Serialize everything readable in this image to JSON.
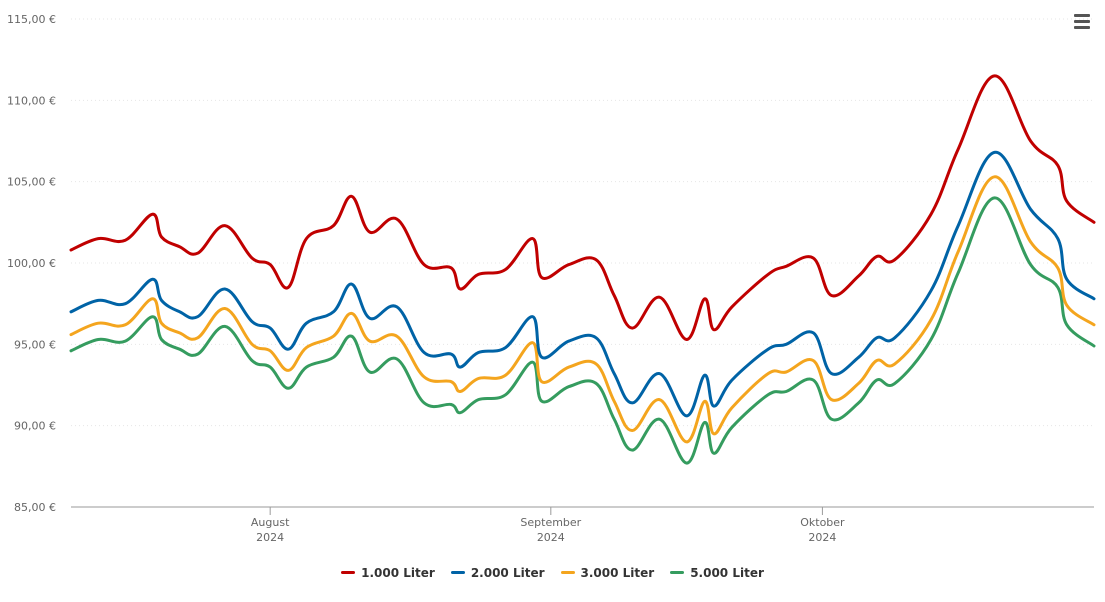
{
  "menu": {
    "icon": "hamburger-menu-icon"
  },
  "chart_data": {
    "type": "line",
    "title": "",
    "xlabel": "",
    "ylabel": "",
    "ylim": [
      85,
      115
    ],
    "yticks": [
      "85,00 €",
      "90,00 €",
      "95,00 €",
      "100,00 €",
      "105,00 €",
      "110,00 €",
      "115,00 €"
    ],
    "ytick_values": [
      85,
      90,
      95,
      100,
      105,
      110,
      115
    ],
    "xlim": [
      "2024-07-10",
      "2024-10-31"
    ],
    "xticks": [
      {
        "date": "2024-08-01",
        "month": "August",
        "year": "2024"
      },
      {
        "date": "2024-09-01",
        "month": "September",
        "year": "2024"
      },
      {
        "date": "2024-10-01",
        "month": "Oktober",
        "year": "2024"
      }
    ],
    "legend_position": "bottom",
    "grid": true,
    "x": [
      "2024-07-10",
      "2024-07-13",
      "2024-07-16",
      "2024-07-19",
      "2024-07-20",
      "2024-07-22",
      "2024-07-24",
      "2024-07-27",
      "2024-07-30",
      "2024-08-01",
      "2024-08-03",
      "2024-08-05",
      "2024-08-08",
      "2024-08-10",
      "2024-08-12",
      "2024-08-15",
      "2024-08-18",
      "2024-08-21",
      "2024-08-22",
      "2024-08-24",
      "2024-08-27",
      "2024-08-30",
      "2024-08-31",
      "2024-09-03",
      "2024-09-06",
      "2024-09-08",
      "2024-09-10",
      "2024-09-13",
      "2024-09-16",
      "2024-09-18",
      "2024-09-19",
      "2024-09-21",
      "2024-09-25",
      "2024-09-27",
      "2024-09-30",
      "2024-10-02",
      "2024-10-05",
      "2024-10-07",
      "2024-10-09",
      "2024-10-13",
      "2024-10-16",
      "2024-10-20",
      "2024-10-24",
      "2024-10-27",
      "2024-10-28",
      "2024-10-31"
    ],
    "series": [
      {
        "name": "1.000 Liter",
        "color": "#c00000",
        "values": [
          100.8,
          101.5,
          101.4,
          103.0,
          101.6,
          101.0,
          100.6,
          102.3,
          100.3,
          99.9,
          98.5,
          101.5,
          102.3,
          104.1,
          101.9,
          102.7,
          99.9,
          99.7,
          98.4,
          99.3,
          99.6,
          101.5,
          99.1,
          99.9,
          100.2,
          98.0,
          96.0,
          97.9,
          95.3,
          97.8,
          95.9,
          97.3,
          99.3,
          99.8,
          100.3,
          98.0,
          99.2,
          100.4,
          100.2,
          103.0,
          107.0,
          111.5,
          107.5,
          106.0,
          103.8,
          102.5
        ]
      },
      {
        "name": "2.000 Liter",
        "color": "#0063a6",
        "values": [
          97.0,
          97.7,
          97.5,
          99.0,
          97.7,
          97.0,
          96.7,
          98.4,
          96.4,
          96.0,
          94.7,
          96.3,
          97.0,
          98.7,
          96.6,
          97.3,
          94.5,
          94.4,
          93.6,
          94.5,
          94.8,
          96.7,
          94.2,
          95.2,
          95.4,
          93.2,
          91.4,
          93.2,
          90.6,
          93.1,
          91.2,
          92.8,
          94.7,
          95.0,
          95.7,
          93.2,
          94.2,
          95.4,
          95.4,
          98.3,
          102.3,
          106.8,
          103.3,
          101.5,
          99.0,
          97.8
        ]
      },
      {
        "name": "3.000 Liter",
        "color": "#f4a51e",
        "values": [
          95.6,
          96.3,
          96.2,
          97.8,
          96.3,
          95.7,
          95.4,
          97.2,
          95.0,
          94.6,
          93.4,
          94.8,
          95.5,
          96.9,
          95.2,
          95.5,
          93.0,
          92.7,
          92.1,
          92.9,
          93.1,
          95.1,
          92.7,
          93.6,
          93.8,
          91.5,
          89.7,
          91.6,
          89.0,
          91.5,
          89.5,
          91.1,
          93.2,
          93.3,
          94.0,
          91.6,
          92.6,
          94.0,
          93.8,
          96.5,
          100.7,
          105.3,
          101.3,
          99.7,
          97.4,
          96.2
        ]
      },
      {
        "name": "5.000 Liter",
        "color": "#359c5f",
        "values": [
          94.6,
          95.3,
          95.2,
          96.7,
          95.3,
          94.7,
          94.4,
          96.1,
          94.0,
          93.6,
          92.3,
          93.6,
          94.2,
          95.5,
          93.3,
          94.1,
          91.4,
          91.3,
          90.8,
          91.6,
          91.9,
          93.9,
          91.5,
          92.4,
          92.6,
          90.4,
          88.5,
          90.4,
          87.7,
          90.2,
          88.3,
          89.9,
          91.9,
          92.1,
          92.8,
          90.4,
          91.4,
          92.8,
          92.6,
          95.3,
          99.4,
          104.0,
          99.9,
          98.5,
          96.2,
          94.9
        ]
      }
    ]
  }
}
